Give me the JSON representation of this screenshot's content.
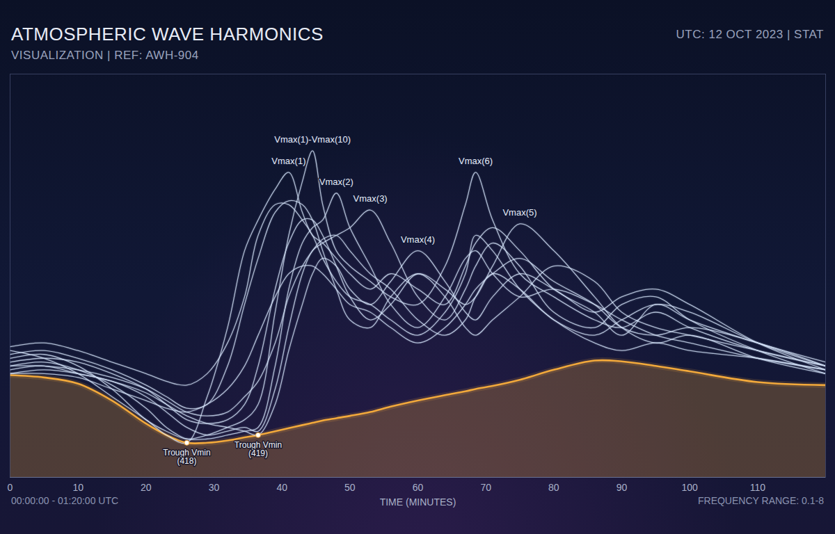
{
  "chart_data": {
    "type": "line",
    "title": "ATMOSPHERIC WAVE HARMONICS",
    "subtitle": "VISUALIZATION | REF: AWH-904",
    "header_right": "UTC: 12 OCT 2023 | STAT",
    "footer_left": "00:00:00 - 01:20:00 UTC",
    "footer_right": "FREQUENCY RANGE: 0.1-8",
    "xlabel": "TIME (MINUTES)",
    "xlim": [
      0,
      120
    ],
    "xticks": [
      0,
      10,
      20,
      30,
      40,
      50,
      60,
      70,
      80,
      90,
      100,
      110
    ],
    "ylim": [
      413.5,
      466
    ],
    "grid": false,
    "tick_labels": "x",
    "x": [
      0,
      5,
      10,
      15,
      20,
      23,
      26,
      29,
      32,
      34.5,
      36.5,
      39,
      41,
      43,
      44.5,
      46,
      48,
      50,
      53,
      56,
      60,
      64,
      67,
      68.5,
      71,
      75,
      80,
      86,
      90,
      95,
      100,
      110,
      120
    ],
    "series": [
      {
        "type": "area",
        "color": "#f2a93b",
        "values": [
          426.8,
          426.5,
          425.7,
          423.5,
          420.5,
          419,
          418,
          418,
          418.3,
          418.7,
          419,
          419.5,
          419.9,
          420.3,
          420.6,
          420.9,
          421.2,
          421.5,
          422,
          422.7,
          423.5,
          424.2,
          424.7,
          425,
          425.4,
          426.2,
          427.5,
          428.7,
          428.6,
          428,
          427.3,
          425.9,
          425.5
        ]
      },
      {
        "type": "line",
        "color": "#d6e6fb",
        "values": [
          429,
          429.5,
          428,
          425,
          421,
          419.5,
          418.5,
          419,
          420,
          421,
          423,
          435,
          445,
          452,
          456,
          449,
          443,
          441,
          439,
          437,
          436,
          441,
          449,
          453.2,
          447,
          440,
          437,
          434,
          433,
          435,
          433,
          430,
          428
        ]
      },
      {
        "type": "line",
        "color": "#d6e6fb",
        "values": [
          430,
          429,
          427,
          424,
          421,
          419,
          418,
          424,
          433,
          443,
          447,
          451,
          453.2,
          448,
          445,
          444,
          442,
          440,
          438,
          440,
          438,
          436,
          441,
          444,
          446,
          443,
          438,
          435,
          432,
          436,
          434,
          431,
          428.5
        ]
      },
      {
        "type": "line",
        "color": "#d6e6fb",
        "values": [
          428,
          428.5,
          427.5,
          425.5,
          422.5,
          420,
          418.5,
          418.5,
          419,
          419.5,
          420,
          428,
          438,
          444,
          446,
          447,
          450.5,
          446,
          441,
          436,
          433,
          437,
          442,
          443,
          440,
          437,
          438,
          436,
          434,
          432,
          431,
          429,
          427.5
        ]
      },
      {
        "type": "line",
        "color": "#d6e6fb",
        "values": [
          427.5,
          428,
          427,
          426,
          424,
          422,
          420,
          419,
          419.5,
          420,
          419.5,
          425,
          433,
          440,
          443,
          444,
          445,
          446,
          448.3,
          444,
          437,
          434,
          438,
          441,
          444,
          441,
          435,
          433,
          436,
          437,
          434,
          430,
          427
        ]
      },
      {
        "type": "line",
        "color": "#d6e6fb",
        "values": [
          427,
          427.5,
          427,
          426,
          424.5,
          423,
          421.5,
          420.5,
          420,
          419.5,
          419,
          423,
          430,
          436,
          440,
          442,
          441,
          438,
          436,
          439,
          443,
          439,
          435,
          434,
          437,
          440,
          438,
          435,
          437,
          438,
          436,
          431,
          427.5
        ]
      },
      {
        "type": "line",
        "color": "#d6e6fb",
        "values": [
          428.5,
          429,
          428.5,
          427,
          425,
          423,
          421,
          420.5,
          421,
          423,
          428,
          438,
          444,
          447,
          447,
          445,
          441,
          437,
          434,
          436,
          440,
          438,
          436,
          437,
          441,
          446.5,
          443,
          437,
          433,
          431,
          432,
          429,
          427
        ]
      },
      {
        "type": "line",
        "color": "#d6e6fb",
        "values": [
          429.5,
          430,
          429,
          427.5,
          425.5,
          424,
          422.5,
          423,
          428,
          436,
          442,
          448,
          449.5,
          449,
          447,
          443,
          438,
          434,
          433,
          437,
          440,
          437,
          433,
          432,
          434,
          437,
          441,
          439,
          435,
          433,
          432,
          430,
          428
        ]
      },
      {
        "type": "line",
        "color": "#d6e6fb",
        "values": [
          428,
          428,
          427.5,
          426.5,
          425,
          423.5,
          422,
          421.5,
          422,
          424,
          426,
          431,
          437,
          441,
          443,
          444.5,
          445,
          443,
          440,
          438,
          434,
          432,
          434,
          437,
          440,
          438,
          434,
          432,
          434,
          436,
          435,
          431,
          428
        ]
      },
      {
        "type": "line",
        "color": "#d6e6fb",
        "values": [
          427,
          427,
          426.5,
          425,
          423.5,
          422.5,
          422,
          423,
          425,
          428,
          432,
          437,
          440,
          441,
          441,
          440,
          438,
          436,
          435,
          433,
          431,
          433,
          436,
          438,
          440,
          442,
          439,
          436,
          433,
          432,
          433,
          431,
          428
        ]
      },
      {
        "type": "line",
        "color": "#d6e6fb",
        "values": [
          430.5,
          431,
          430,
          428.5,
          427,
          426,
          425.5,
          427,
          431,
          437,
          445,
          449,
          449,
          447,
          445,
          442,
          439,
          437,
          436,
          434,
          432,
          435,
          440,
          445,
          443,
          438,
          434,
          431,
          430,
          431,
          430,
          429,
          427.5
        ]
      }
    ],
    "annotations": [
      {
        "text": "Vmax(1)-Vmax(10)",
        "x": 44.5,
        "y": 456
      },
      {
        "text": "Vmax(1)",
        "x": 41,
        "y": 453.2
      },
      {
        "text": "Vmax(2)",
        "x": 48,
        "y": 450.5
      },
      {
        "text": "Vmax(3)",
        "x": 53,
        "y": 448.3
      },
      {
        "text": "Vmax(4)",
        "x": 60,
        "y": 443
      },
      {
        "text": "Vmax(6)",
        "x": 68.5,
        "y": 453.2
      },
      {
        "text": "Vmax(5)",
        "x": 75,
        "y": 446.5
      },
      {
        "text": "Trough Vmin\n(418)",
        "x": 26,
        "y": 418,
        "marker": "circle"
      },
      {
        "text": "Trough Vmin\n(419)",
        "x": 36.5,
        "y": 419,
        "marker": "circle"
      }
    ]
  }
}
